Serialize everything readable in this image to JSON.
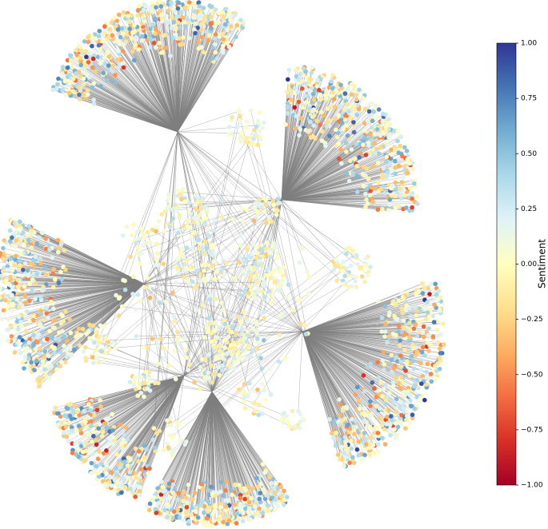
{
  "chart_data": {
    "type": "network",
    "colorbar": {
      "label": "Sentiment",
      "clim": [
        -1,
        1
      ],
      "ticks": [
        {
          "value": 1,
          "label": "1.00"
        },
        {
          "value": 0.75,
          "label": "0.75"
        },
        {
          "value": 0.5,
          "label": "0.50"
        },
        {
          "value": 0.25,
          "label": "0.25"
        },
        {
          "value": 0,
          "label": "0.00"
        },
        {
          "value": -0.25,
          "label": "−0.25"
        },
        {
          "value": -0.5,
          "label": "−0.50"
        },
        {
          "value": -0.75,
          "label": "−0.75"
        },
        {
          "value": -1,
          "label": "−1.00"
        }
      ],
      "colormap": [
        "#a50026",
        "#d73027",
        "#f46d43",
        "#fdae61",
        "#fee090",
        "#ffffbf",
        "#e0f3f8",
        "#abd9e9",
        "#74add1",
        "#4575b4",
        "#313695"
      ]
    },
    "edge_color": "#808080"
  }
}
